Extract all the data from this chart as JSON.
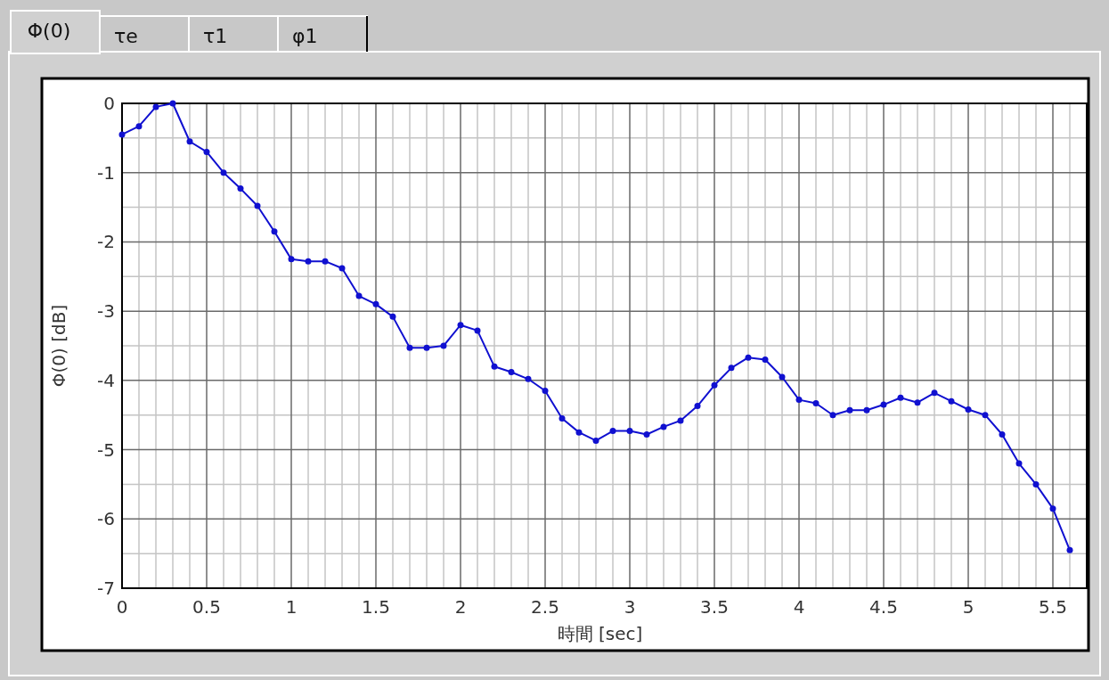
{
  "chart_data": {
    "type": "line",
    "xlabel": "時間 [sec]",
    "ylabel": "Φ(0) [dB]",
    "annotations": [
      "Φ(0)",
      "τe",
      "τ1",
      "φ1"
    ],
    "x": [
      0,
      0.1,
      0.2,
      0.3,
      0.4,
      0.5,
      0.6,
      0.7,
      0.8,
      0.9,
      1.0,
      1.1,
      1.2,
      1.3,
      1.4,
      1.5,
      1.6,
      1.7,
      1.8,
      1.9,
      2.0,
      2.1,
      2.2,
      2.3,
      2.4,
      2.5,
      2.6,
      2.7,
      2.8,
      2.9,
      3.0,
      3.1,
      3.2,
      3.3,
      3.4,
      3.5,
      3.6,
      3.7,
      3.8,
      3.9,
      4.0,
      4.1,
      4.2,
      4.3,
      4.4,
      4.5,
      4.6,
      4.7,
      4.8,
      4.9,
      5.0,
      5.1,
      5.2,
      5.3,
      5.4,
      5.5,
      5.6
    ],
    "series": [
      {
        "color": "#1010d0",
        "values": [
          -0.45,
          -0.33,
          -0.05,
          0.0,
          -0.55,
          -0.7,
          -1.0,
          -1.23,
          -1.48,
          -1.85,
          -2.25,
          -2.28,
          -2.28,
          -2.38,
          -2.78,
          -2.9,
          -3.08,
          -3.53,
          -3.53,
          -3.5,
          -3.2,
          -3.28,
          -3.8,
          -3.88,
          -3.98,
          -4.15,
          -4.55,
          -4.75,
          -4.87,
          -4.73,
          -4.73,
          -4.78,
          -4.67,
          -4.58,
          -4.37,
          -4.07,
          -3.82,
          -3.67,
          -3.7,
          -3.95,
          -4.28,
          -4.33,
          -4.5,
          -4.43,
          -4.43,
          -4.35,
          -4.25,
          -4.32,
          -4.18,
          -4.3,
          -4.42,
          -4.5,
          -4.78,
          -5.2,
          -5.5,
          -5.85,
          -6.45
        ]
      }
    ],
    "xlim": [
      0,
      5.7
    ],
    "xticks": [
      0,
      0.5,
      1,
      1.5,
      2,
      2.5,
      3,
      3.5,
      4,
      4.5,
      5,
      5.5
    ],
    "ylim": [
      -7,
      0
    ],
    "yticks": [
      -7,
      -6,
      -5,
      -4,
      -3,
      -2,
      -1,
      0
    ],
    "grid": true,
    "marker": "circle",
    "line_style": "solid"
  }
}
